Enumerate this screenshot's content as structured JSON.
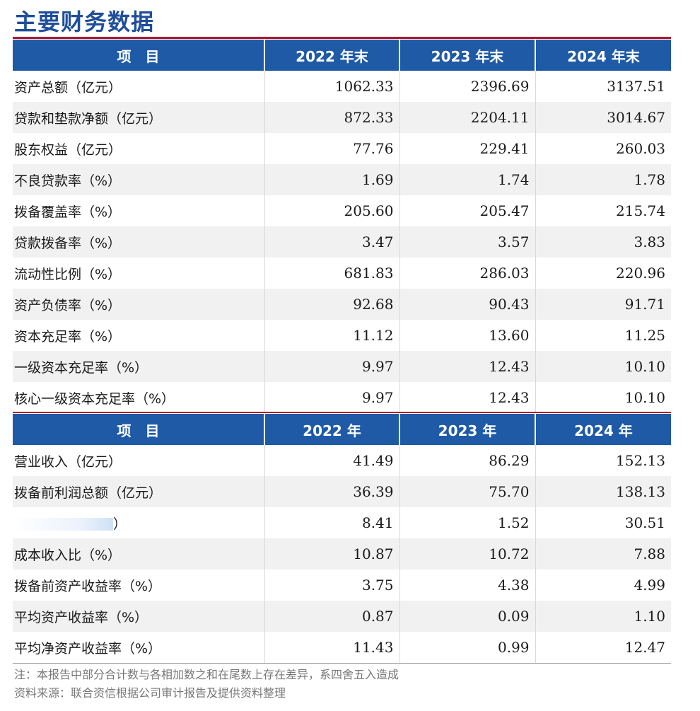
{
  "title": "主要财务数据",
  "table1": {
    "header": [
      "项　目",
      "2022 年末",
      "2023 年末",
      "2024 年末"
    ],
    "rows": [
      {
        "label": "资产总额（亿元）",
        "values": [
          "1062.33",
          "2396.69",
          "3137.51"
        ]
      },
      {
        "label": "贷款和垫款净额（亿元）",
        "values": [
          "872.33",
          "2204.11",
          "3014.67"
        ]
      },
      {
        "label": "股东权益（亿元）",
        "values": [
          "77.76",
          "229.41",
          "260.03"
        ]
      },
      {
        "label": "不良贷款率（%）",
        "values": [
          "1.69",
          "1.74",
          "1.78"
        ]
      },
      {
        "label": "拨备覆盖率（%）",
        "values": [
          "205.60",
          "205.47",
          "215.74"
        ]
      },
      {
        "label": "贷款拨备率（%）",
        "values": [
          "3.47",
          "3.57",
          "3.83"
        ]
      },
      {
        "label": "流动性比例（%）",
        "values": [
          "681.83",
          "286.03",
          "220.96"
        ]
      },
      {
        "label": "资产负债率（%）",
        "values": [
          "92.68",
          "90.43",
          "91.71"
        ]
      },
      {
        "label": "资本充足率（%）",
        "values": [
          "11.12",
          "13.60",
          "11.25"
        ]
      },
      {
        "label": "一级资本充足率（%）",
        "values": [
          "9.97",
          "12.43",
          "10.10"
        ]
      },
      {
        "label": "核心一级资本充足率（%）",
        "values": [
          "9.97",
          "12.43",
          "10.10"
        ]
      }
    ]
  },
  "table2": {
    "header": [
      "项　目",
      "2022 年",
      "2023 年",
      "2024 年"
    ],
    "rows": [
      {
        "label": "营业收入（亿元）",
        "values": [
          "41.49",
          "86.29",
          "152.13"
        ]
      },
      {
        "label": "拨备前利润总额（亿元）",
        "values": [
          "36.39",
          "75.70",
          "138.13"
        ]
      },
      {
        "label": "）",
        "values": [
          "8.41",
          "1.52",
          "30.51"
        ]
      },
      {
        "label": "成本收入比（%）",
        "values": [
          "10.87",
          "10.72",
          "7.88"
        ]
      },
      {
        "label": "拨备前资产收益率（%）",
        "values": [
          "3.75",
          "4.38",
          "4.99"
        ]
      },
      {
        "label": "平均资产收益率（%）",
        "values": [
          "0.87",
          "0.09",
          "1.10"
        ]
      },
      {
        "label": "平均净资产收益率（%）",
        "values": [
          "11.43",
          "0.99",
          "12.47"
        ]
      }
    ]
  },
  "notes": {
    "line1": "注：本报告中部分合计数与各相加数之和在尾数上存在差异，系四舍五入造成",
    "line2": "资料来源：联合资信根据公司审计报告及提供资料整理"
  }
}
